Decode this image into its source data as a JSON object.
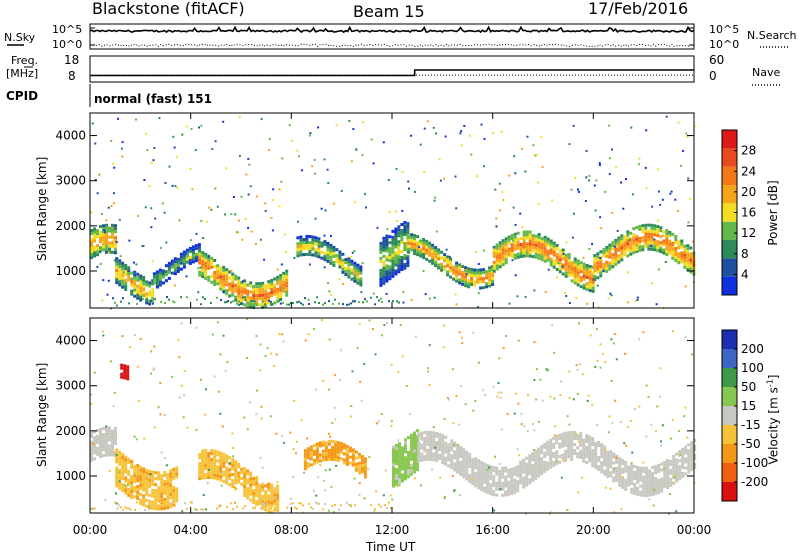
{
  "header": {
    "site": "Blackstone (fitACF)",
    "beam": "Beam 15",
    "date": "17/Feb/2016"
  },
  "noise_panel": {
    "left_label": "N.Sky",
    "right_label": "N.Search",
    "left_ticks": [
      "10^5",
      "10^0"
    ],
    "right_ticks": [
      "10^5",
      "10^0"
    ]
  },
  "freq_panel": {
    "left_label_line1": "Freq.",
    "left_label_line2": "[MHz]",
    "left_ticks": [
      "18",
      "8"
    ],
    "right_ticks": [
      "60",
      "0"
    ],
    "right_label": "Nave"
  },
  "cpid_panel": {
    "label": "CPID",
    "value": "normal (fast) 151"
  },
  "power_panel": {
    "ylabel": "Slant Range [km]",
    "colorbar_label": "Power [dB]",
    "colorbar_ticks": [
      "28",
      "24",
      "20",
      "16",
      "12",
      "8",
      "4"
    ],
    "colors": [
      "#1030e0",
      "#1f4fa0",
      "#2e8a58",
      "#63b84a",
      "#f5dc24",
      "#f5a51c",
      "#f47a18",
      "#e8491e",
      "#dc1a1a"
    ]
  },
  "velocity_panel": {
    "ylabel": "Slant Range [km]",
    "colorbar_label": "Velocity [m s^-1]",
    "colorbar_ticks": [
      "200",
      "100",
      "50",
      "15",
      "-15",
      "-50",
      "-100",
      "-200"
    ],
    "colors": [
      "#d81010",
      "#f06010",
      "#f59818",
      "#f5c23a",
      "#c8c8c0",
      "#88c850",
      "#3f9a48",
      "#3b66c4",
      "#1c2fb0"
    ]
  },
  "x_axis": {
    "label": "Time UT",
    "ticks": [
      "00:00",
      "04:00",
      "08:00",
      "12:00",
      "16:00",
      "20:00",
      "00:00"
    ]
  },
  "chart_data": [
    {
      "type": "line",
      "title": "N.Sky / N.Search",
      "ylim": [
        "10^0",
        "10^5"
      ],
      "x": [
        0,
        12,
        24
      ],
      "series": [
        {
          "name": "N.Sky",
          "values": [
            4000,
            4000,
            4000
          ]
        },
        {
          "name": "N.Search",
          "values": [
            3,
            3,
            3
          ]
        }
      ]
    },
    {
      "type": "line",
      "title": "Freq. / Nave",
      "xlim": [
        0,
        24
      ],
      "ylim_freq": [
        8,
        18
      ],
      "ylim_nave": [
        0,
        60
      ],
      "series": [
        {
          "name": "Freq",
          "x": [
            0,
            12.9,
            12.9,
            24
          ],
          "values": [
            10.5,
            10.5,
            12.6,
            12.6
          ]
        },
        {
          "name": "Nave",
          "x": [
            0,
            24
          ],
          "values": [
            16,
            16
          ]
        }
      ]
    },
    {
      "type": "heatmap",
      "title": "Power [dB]",
      "xlabel": "Time UT",
      "ylabel": "Slant Range [km]",
      "xlim": [
        0,
        24
      ],
      "ylim": [
        180,
        4500
      ],
      "x_ticks": [
        0,
        4,
        8,
        12,
        16,
        20,
        24
      ],
      "y_ticks": [
        1000,
        2000,
        3000,
        4000
      ],
      "bands": [
        {
          "t": [
            0.0,
            1.0
          ],
          "range": [
            1050,
            1650
          ],
          "value": 22
        },
        {
          "t": [
            1.0,
            2.5
          ],
          "range": [
            650,
            1200
          ],
          "value": 20
        },
        {
          "t": [
            2.5,
            4.3
          ],
          "range": [
            900,
            1250
          ],
          "value": 14
        },
        {
          "t": [
            4.3,
            7.8
          ],
          "range": [
            600,
            1150
          ],
          "value": 24
        },
        {
          "t": [
            8.2,
            10.8
          ],
          "range": [
            950,
            1400
          ],
          "value": 18
        },
        {
          "t": [
            11.5,
            12.6
          ],
          "range": [
            900,
            1900
          ],
          "value": 16
        },
        {
          "t": [
            12.6,
            16.0
          ],
          "range": [
            1050,
            1450
          ],
          "value": 22
        },
        {
          "t": [
            16.0,
            20.0
          ],
          "range": [
            950,
            1500
          ],
          "value": 24
        },
        {
          "t": [
            20.0,
            24.0
          ],
          "range": [
            1100,
            1650
          ],
          "value": 24
        }
      ]
    },
    {
      "type": "heatmap",
      "title": "Velocity [m s^-1]",
      "xlabel": "Time UT",
      "ylabel": "Slant Range [km]",
      "xlim": [
        0,
        24
      ],
      "ylim": [
        180,
        4500
      ],
      "x_ticks": [
        0,
        4,
        8,
        12,
        16,
        20,
        24
      ],
      "y_ticks": [
        1000,
        2000,
        3000,
        4000
      ],
      "bands": [
        {
          "t": [
            0.0,
            1.0
          ],
          "range": [
            1100,
            1700
          ],
          "value": 0
        },
        {
          "t": [
            1.0,
            3.5
          ],
          "range": [
            650,
            1500
          ],
          "value": -60
        },
        {
          "t": [
            4.3,
            7.5
          ],
          "range": [
            600,
            1200
          ],
          "value": -60
        },
        {
          "t": [
            8.5,
            11.0
          ],
          "range": [
            950,
            1400
          ],
          "value": -80
        },
        {
          "t": [
            12.0,
            13.0
          ],
          "range": [
            1100,
            2000
          ],
          "value": 40
        },
        {
          "t": [
            13.0,
            24.0
          ],
          "range": [
            1000,
            1600
          ],
          "value": 0
        },
        {
          "t": [
            1.2,
            1.5
          ],
          "range": [
            2800,
            3100
          ],
          "value": -200
        }
      ]
    }
  ]
}
